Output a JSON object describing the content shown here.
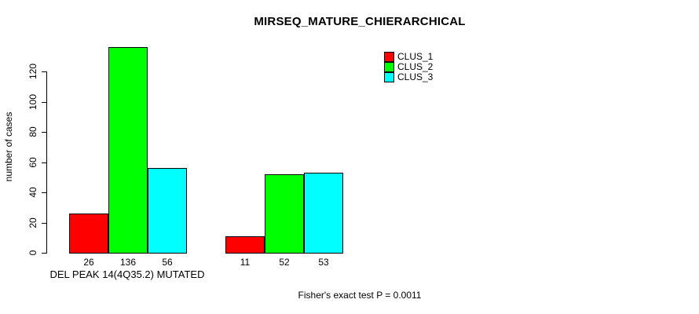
{
  "chart_data": {
    "type": "bar",
    "title": "MIRSEQ_MATURE_CHIERARCHICAL",
    "ylabel": "number of cases",
    "xlabel": "",
    "ylim": [
      0,
      136
    ],
    "yticks": [
      0,
      20,
      40,
      60,
      80,
      100,
      120
    ],
    "grid": false,
    "legend_position": "top-right",
    "categories": [
      "DEL PEAK 14(4Q35.2) MUTATED",
      ""
    ],
    "series": [
      {
        "name": "CLUS_1",
        "color": "#ff0000",
        "values": [
          26,
          11
        ]
      },
      {
        "name": "CLUS_2",
        "color": "#00ff00",
        "values": [
          136,
          52
        ]
      },
      {
        "name": "CLUS_3",
        "color": "#00ffff",
        "values": [
          56,
          53
        ]
      }
    ],
    "annotation": "Fisher's exact test P = 0.0011"
  }
}
